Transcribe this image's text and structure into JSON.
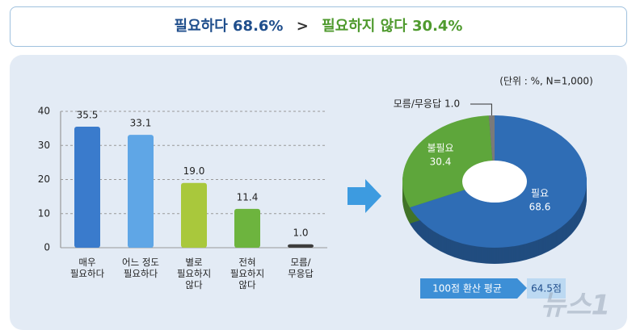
{
  "headline": {
    "left": "필요하다 68.6%",
    "sign": ">",
    "right": "필요하지 않다 30.4%"
  },
  "note": "(단위 : %, N=1,000)",
  "score": {
    "label": "100점 환산 평균",
    "value": "64.5점"
  },
  "watermark": "뉴스1",
  "chart_data": [
    {
      "type": "bar",
      "categories": [
        "매우\n필요하다",
        "어느 정도\n필요하다",
        "별로\n필요하지\n않다",
        "전혀\n필요하지\n않다",
        "모름/\n무응답"
      ],
      "values": [
        35.5,
        33.1,
        19.0,
        11.4,
        1.0
      ],
      "value_labels": [
        "35.5",
        "33.1",
        "19.0",
        "11.4",
        "1.0"
      ],
      "colors": [
        "#3a7bcc",
        "#5fa6e6",
        "#a9c83c",
        "#6db43e",
        "#3d3d3d"
      ],
      "ylim": [
        0,
        40
      ],
      "yticks": [
        0,
        10,
        20,
        30,
        40
      ],
      "grid": true
    },
    {
      "type": "pie",
      "categories": [
        "필요",
        "불필요",
        "모름/무응답"
      ],
      "values": [
        68.6,
        30.4,
        1.0
      ],
      "value_labels": [
        "68.6",
        "30.4",
        "1.0"
      ],
      "colors": [
        "#2f6db5",
        "#5ea63b",
        "#7a7a7a"
      ]
    }
  ]
}
